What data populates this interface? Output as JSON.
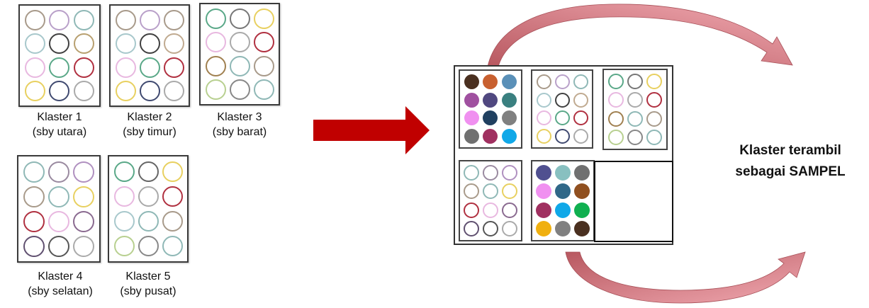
{
  "clusters": [
    {
      "label": "Klaster 1",
      "region": "(sby utara)",
      "rings": [
        "#a89a8a",
        "#b9a0c9",
        "#8fb8b6",
        "#a8c8cc",
        "#404040",
        "#b8a070",
        "#e8b8e0",
        "#5aa888",
        "#b03040",
        "#e8d060",
        "#404a70",
        "#aaaaaa"
      ]
    },
    {
      "label": "Klaster 2",
      "region": "(sby timur)",
      "rings": [
        "#a89a8a",
        "#b9a0c9",
        "#a89a8a",
        "#a8c8cc",
        "#404040",
        "#c0aa90",
        "#e8b8e0",
        "#5aa888",
        "#b03040",
        "#e8d060",
        "#404a70",
        "#aaaaaa"
      ]
    },
    {
      "label": "Klaster 3",
      "region": "(sby barat)",
      "rings": [
        "#5aa888",
        "#777777",
        "#e8d060",
        "#e8b8e0",
        "#aaaaaa",
        "#b03040",
        "#a08050",
        "#8fb8b6",
        "#a89a8a",
        "#b8d090",
        "#888888",
        "#8fb8b6"
      ]
    },
    {
      "label": "Klaster 4",
      "region": "(sby selatan)",
      "rings": [
        "#8fb8b6",
        "#9a8aa0",
        "#b090c0",
        "#a89a8a",
        "#8fb8b6",
        "#e8d060",
        "#b03040",
        "#e8b8e0",
        "#8a6a90",
        "#605070",
        "#555555",
        "#aaaaaa"
      ]
    },
    {
      "label": "Klaster 5",
      "region": "(sby pusat)",
      "rings": [
        "#5aa888",
        "#666666",
        "#e8d060",
        "#e8b8e0",
        "#aaaaaa",
        "#b03040",
        "#a8c8cc",
        "#8fb8b6",
        "#a89a8a",
        "#b8d090",
        "#888888",
        "#8fb8b6"
      ]
    }
  ],
  "sample": {
    "label_line1": "Klaster terambil",
    "label_line2": "sebagai SAMPEL",
    "filled_a": [
      "#4a3020",
      "#c86030",
      "#5a90b8",
      "#a050a0",
      "#504880",
      "#3a8080",
      "#f090f0",
      "#204060",
      "#808080",
      "#707070",
      "#a03060",
      "#10a8e8"
    ],
    "rings_b": [
      "#a89a8a",
      "#b9a0c9",
      "#8fb8b6",
      "#a8c8cc",
      "#404040",
      "#c0aa90",
      "#e8b8e0",
      "#5aa888",
      "#b03040",
      "#e8d060",
      "#404a70",
      "#aaaaaa"
    ],
    "rings_c": [
      "#5aa888",
      "#777777",
      "#e8d060",
      "#e8b8e0",
      "#aaaaaa",
      "#b03040",
      "#a08050",
      "#8fb8b6",
      "#a89a8a",
      "#b8d090",
      "#888888",
      "#8fb8b6"
    ],
    "rings_d": [
      "#8fb8b6",
      "#9a8aa0",
      "#b090c0",
      "#a89a8a",
      "#8fb8b6",
      "#e8d060",
      "#b03040",
      "#e8b8e0",
      "#8a6a90",
      "#605070",
      "#555555",
      "#aaaaaa"
    ],
    "filled_e": [
      "#505090",
      "#88c0c0",
      "#707070",
      "#f090f0",
      "#306888",
      "#905020",
      "#a03060",
      "#10a8e8",
      "#10b050",
      "#f0b010",
      "#808080",
      "#4a3020"
    ]
  },
  "colors": {
    "main_arrow": "#c00000",
    "curved_arrow": "#d88890",
    "curved_arrow_dark": "#b85860"
  }
}
